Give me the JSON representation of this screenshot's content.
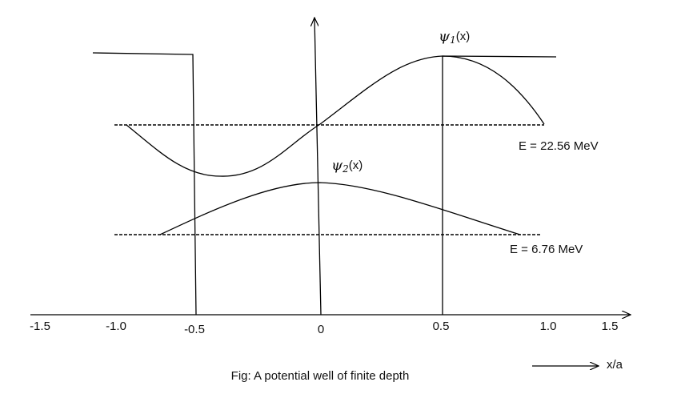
{
  "psi1_label": {
    "symbol": "ψ",
    "subscript": "1",
    "suffix": "(x)"
  },
  "psi2_label": {
    "symbol": "ψ",
    "subscript": "2",
    "suffix": "(x)"
  },
  "energy_levels": [
    "E = 22.56 MeV",
    "E = 6.76 MeV"
  ],
  "x_tick_labels": [
    "-1.5",
    "-1.0",
    "-0.5",
    "0",
    "0.5",
    "1.0",
    "1.5"
  ],
  "x_axis_label": "x/a",
  "caption": "Fig: A potential well of finite depth"
}
